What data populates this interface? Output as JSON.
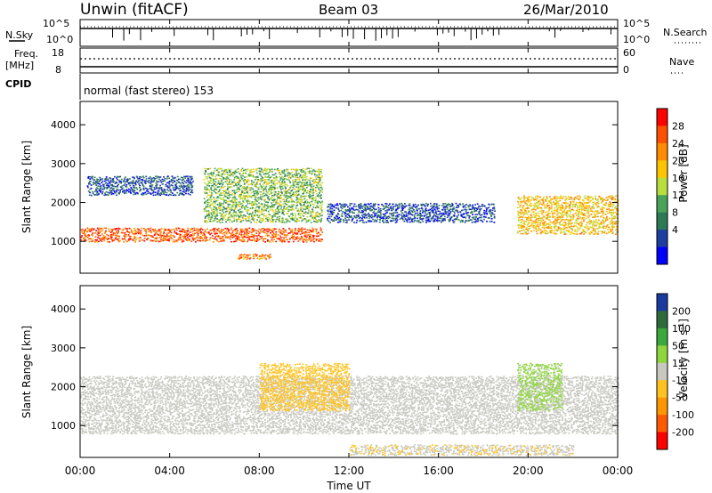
{
  "header": {
    "station": "Unwin (fitACF)",
    "beam": "Beam 03",
    "date": "26/Mar/2010"
  },
  "status_panels": {
    "nsky_label": "N.Sky",
    "nsearch_label": "N.Search",
    "freq_label": "Freq.",
    "freq_unit": "[MHz]",
    "nave_label": "Nave",
    "cpid_label": "CPID",
    "cpid_text": "normal (fast stereo) 153",
    "noise_ticks_left": [
      "10^5",
      "10^0"
    ],
    "noise_ticks_right": [
      "10^5",
      "10^0"
    ],
    "freq_ticks_left": [
      "18",
      "8"
    ],
    "freq_ticks_right": [
      "60",
      "0"
    ]
  },
  "x_axis": {
    "label": "Time UT",
    "ticks": [
      "00:00",
      "04:00",
      "08:00",
      "12:00",
      "16:00",
      "20:00",
      "00:00"
    ]
  },
  "power_panel": {
    "ylabel": "Slant Range [km]",
    "yticks": [
      "4000",
      "3000",
      "2000",
      "1000"
    ],
    "colorbar_label": "Power [dB]",
    "colorbar_ticks": [
      "28",
      "24",
      "20",
      "16",
      "12",
      "8",
      "4"
    ],
    "colors": [
      "#ff0000",
      "#ff4f00",
      "#ff8c00",
      "#ffc400",
      "#b9dd3c",
      "#4aa35a",
      "#2d7a56",
      "#1e3ea0",
      "#0000ff"
    ]
  },
  "velocity_panel": {
    "ylabel": "Slant Range [km]",
    "yticks": [
      "4000",
      "3000",
      "2000",
      "1000"
    ],
    "colorbar_label": "Velocity [m s",
    "colorbar_label_sup": "-1",
    "colorbar_label_end": "]",
    "colorbar_ticks": [
      "200",
      "100",
      "50",
      "15",
      "-15",
      "-50",
      "-100",
      "-200"
    ],
    "colors": [
      "#1a3aa0",
      "#2d6b3c",
      "#3aa83a",
      "#8ed63e",
      "#c8c8c0",
      "#ffc21e",
      "#ff9600",
      "#ff5a00",
      "#ff0000"
    ]
  },
  "chart_data": {
    "type": "heatmap",
    "x_range_hours": [
      0,
      24
    ],
    "y_range_km": [
      180,
      4600
    ],
    "power_features": [
      {
        "name": "main-band",
        "t_start": 0.0,
        "t_end": 10.8,
        "r_start": 1000,
        "r_end": 1350,
        "power_db": 26
      },
      {
        "name": "upper-diffuse",
        "t_start": 0.3,
        "t_end": 5.0,
        "r_start": 2200,
        "r_end": 2700,
        "power_db": 6
      },
      {
        "name": "arc-structure",
        "t_start": 5.5,
        "t_end": 10.8,
        "r_start": 1500,
        "r_end": 2900,
        "power_db": 14
      },
      {
        "name": "midday-arc",
        "t_start": 11.0,
        "t_end": 18.5,
        "r_start": 1500,
        "r_end": 2000,
        "power_db": 6
      },
      {
        "name": "evening-band",
        "t_start": 19.5,
        "t_end": 24.0,
        "r_start": 1200,
        "r_end": 2200,
        "power_db": 20
      },
      {
        "name": "small-patch",
        "t_start": 7.0,
        "t_end": 8.5,
        "r_start": 550,
        "r_end": 700,
        "power_db": 24
      }
    ],
    "velocity_features": [
      {
        "name": "grey-band",
        "t_start": 0.0,
        "t_end": 24.0,
        "r_start": 800,
        "r_end": 2300,
        "velocity_ms": 0
      },
      {
        "name": "orange-streaks",
        "t_start": 8.0,
        "t_end": 12.0,
        "r_start": 1400,
        "r_end": 2600,
        "velocity_ms": -60
      },
      {
        "name": "green-patch",
        "t_start": 19.5,
        "t_end": 21.5,
        "r_start": 1400,
        "r_end": 2600,
        "velocity_ms": 40
      },
      {
        "name": "yellow-bottom",
        "t_start": 12.0,
        "t_end": 22.0,
        "r_start": 250,
        "r_end": 500,
        "velocity_ms": -20
      }
    ]
  }
}
